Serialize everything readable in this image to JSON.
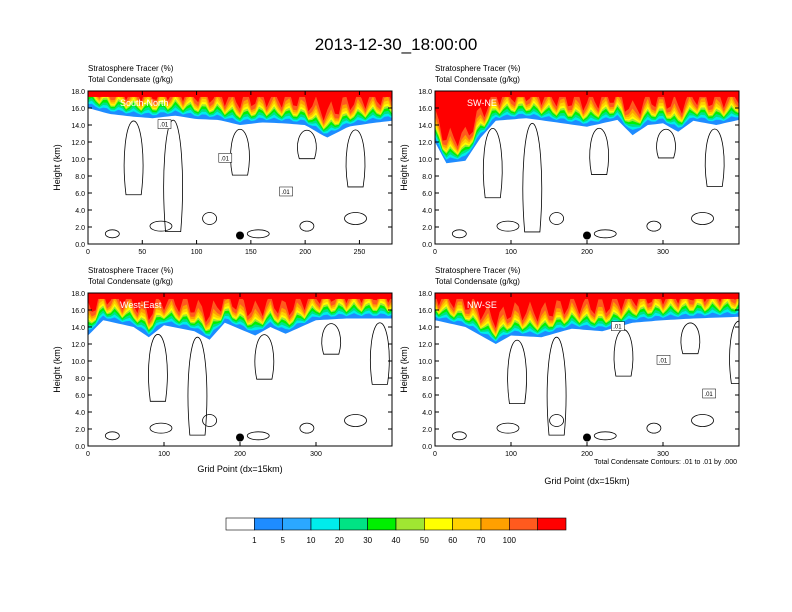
{
  "title": "2013-12-30_18:00:00",
  "colors": {
    "levels": [
      "#ffffff",
      "#1e8cff",
      "#2ba8ff",
      "#00ecec",
      "#00e384",
      "#00f000",
      "#a0e632",
      "#ffff00",
      "#ffd200",
      "#ffa000",
      "#ff5a1e",
      "#ff0000"
    ]
  },
  "colorbar": {
    "labels": [
      "1",
      "5",
      "10",
      "20",
      "30",
      "40",
      "50",
      "60",
      "70",
      "100"
    ]
  },
  "footnote": "Total Condensate Contours: .01 to .01 by .000",
  "chart_data": [
    {
      "type": "heatmap",
      "subtitle_line1": "Stratosphere Tracer   (%)",
      "subtitle_line2": "Total Condensate   (g/kg)",
      "panel_label": "South-North",
      "xlabel": "",
      "ylabel": "Height (km)",
      "xlim": [
        0,
        280
      ],
      "ylim": [
        0,
        18
      ],
      "xticks": [
        "0",
        "50",
        "100",
        "150",
        "200",
        "250"
      ],
      "yticks": [
        "0.0",
        "2.0",
        "4.0",
        "6.0",
        "8.0",
        "10.0",
        "12.0",
        "14.0",
        "16.0",
        "18.0"
      ],
      "marker_x": 140,
      "contour_labels": [
        ".01",
        ".01",
        ".01"
      ],
      "tracer_base_km": [
        [
          0,
          16.0
        ],
        [
          20,
          15.3
        ],
        [
          40,
          15.0
        ],
        [
          60,
          14.8
        ],
        [
          80,
          15.1
        ],
        [
          100,
          14.7
        ],
        [
          120,
          14.6
        ],
        [
          140,
          14.0
        ],
        [
          160,
          14.3
        ],
        [
          180,
          14.2
        ],
        [
          200,
          14.0
        ],
        [
          220,
          12.5
        ],
        [
          240,
          13.8
        ],
        [
          260,
          14.2
        ],
        [
          280,
          14.5
        ]
      ]
    },
    {
      "type": "heatmap",
      "subtitle_line1": "Stratosphere Tracer   (%)",
      "subtitle_line2": "Total Condensate   (g/kg)",
      "panel_label": "SW-NE",
      "xlabel": "",
      "ylabel": "Height (km)",
      "xlim": [
        0,
        400
      ],
      "ylim": [
        0,
        18
      ],
      "xticks": [
        "0",
        "100",
        "200",
        "300"
      ],
      "yticks": [
        "0.0",
        "2.0",
        "4.0",
        "6.0",
        "8.0",
        "10.0",
        "12.0",
        "14.0",
        "16.0",
        "18.0"
      ],
      "marker_x": 200,
      "contour_labels": [],
      "tracer_base_km": [
        [
          0,
          12.0
        ],
        [
          15,
          9.5
        ],
        [
          40,
          9.8
        ],
        [
          60,
          12.5
        ],
        [
          80,
          14.5
        ],
        [
          120,
          14.8
        ],
        [
          160,
          14.3
        ],
        [
          200,
          13.8
        ],
        [
          240,
          14.6
        ],
        [
          260,
          12.8
        ],
        [
          280,
          14.0
        ],
        [
          300,
          14.2
        ],
        [
          320,
          13.2
        ],
        [
          340,
          14.5
        ],
        [
          370,
          14.0
        ],
        [
          400,
          14.6
        ]
      ]
    },
    {
      "type": "heatmap",
      "subtitle_line1": "Stratosphere Tracer   (%)",
      "subtitle_line2": "Total Condensate   (g/kg)",
      "panel_label": "West-East",
      "xlabel": "Grid Point (dx=15km)",
      "ylabel": "Height (km)",
      "xlim": [
        0,
        400
      ],
      "ylim": [
        0,
        18
      ],
      "xticks": [
        "0",
        "100",
        "200",
        "300"
      ],
      "yticks": [
        "0.0",
        "2.0",
        "4.0",
        "6.0",
        "8.0",
        "10.0",
        "12.0",
        "14.0",
        "16.0",
        "18.0"
      ],
      "marker_x": 200,
      "contour_labels": [],
      "tracer_base_km": [
        [
          0,
          13.0
        ],
        [
          20,
          14.8
        ],
        [
          60,
          14.0
        ],
        [
          80,
          12.8
        ],
        [
          100,
          14.2
        ],
        [
          140,
          13.5
        ],
        [
          160,
          12.5
        ],
        [
          180,
          14.5
        ],
        [
          220,
          13.0
        ],
        [
          240,
          14.0
        ],
        [
          260,
          13.2
        ],
        [
          300,
          14.8
        ],
        [
          340,
          15.0
        ],
        [
          400,
          15.0
        ]
      ]
    },
    {
      "type": "heatmap",
      "subtitle_line1": "Stratosphere Tracer   (%)",
      "subtitle_line2": "Total Condensate   (g/kg)",
      "panel_label": "NW-SE",
      "xlabel": "Grid Point (dx=15km)",
      "ylabel": "Height (km)",
      "xlim": [
        0,
        400
      ],
      "ylim": [
        0,
        18
      ],
      "xticks": [
        "0",
        "100",
        "200",
        "300"
      ],
      "yticks": [
        "0.0",
        "2.0",
        "4.0",
        "6.0",
        "8.0",
        "10.0",
        "12.0",
        "14.0",
        "16.0",
        "18.0"
      ],
      "marker_x": 200,
      "contour_labels": [
        ".01",
        ".01",
        ".01"
      ],
      "tracer_base_km": [
        [
          0,
          14.8
        ],
        [
          40,
          14.0
        ],
        [
          80,
          12.0
        ],
        [
          100,
          13.0
        ],
        [
          140,
          12.8
        ],
        [
          180,
          13.8
        ],
        [
          220,
          13.5
        ],
        [
          260,
          14.5
        ],
        [
          300,
          14.8
        ],
        [
          340,
          15.0
        ],
        [
          400,
          15.2
        ]
      ]
    }
  ]
}
